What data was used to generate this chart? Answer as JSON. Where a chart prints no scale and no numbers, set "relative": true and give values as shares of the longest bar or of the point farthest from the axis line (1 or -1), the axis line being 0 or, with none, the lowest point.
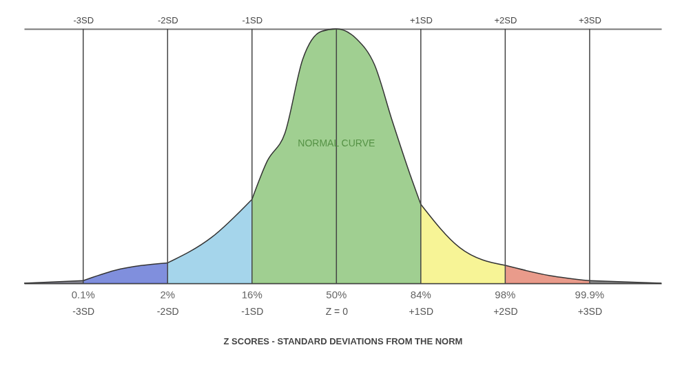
{
  "chart_data": {
    "type": "area",
    "relative": true,
    "xlabel": "Z SCORES - STANDARD DEVIATIONS FROM THE NORM",
    "xlim": [
      -3.7,
      3.85
    ],
    "xticks": [
      {
        "value": -3,
        "label": "-3SD"
      },
      {
        "value": -2,
        "label": "-2SD"
      },
      {
        "value": -1,
        "label": "-1SD"
      },
      {
        "value": 0,
        "label": "Z = 0"
      },
      {
        "value": 1,
        "label": "+1SD"
      },
      {
        "value": 2,
        "label": "+2SD"
      },
      {
        "value": 3,
        "label": "+3SD"
      }
    ],
    "x2lim": [
      -3.7,
      3.85
    ],
    "x2ticks": [
      {
        "value": -3,
        "label": "-3SD"
      },
      {
        "value": -2,
        "label": "-2SD"
      },
      {
        "value": -1,
        "label": "-1SD"
      },
      {
        "value": 1,
        "label": "+1SD"
      },
      {
        "value": 2,
        "label": "+2SD"
      },
      {
        "value": 3,
        "label": "+3SD"
      }
    ],
    "series": [
      {
        "color": "#5a5a6a",
        "x": [
          -3.7,
          -3
        ],
        "values": [
          0,
          0.01
        ]
      },
      {
        "color": "#4a5fcf",
        "x": [
          -3,
          -2.63,
          -2
        ],
        "values": [
          0.01,
          0.05,
          0.08
        ]
      },
      {
        "color": "#7fc3e3",
        "x": [
          -2,
          -1.48,
          -1
        ],
        "values": [
          0.08,
          0.18,
          0.33
        ]
      },
      {
        "color": "#78bb63",
        "x": [
          -1,
          -0.82,
          -0.61,
          -0.4,
          -0.18,
          0,
          0.24,
          0.45,
          0.66,
          0.87,
          1
        ],
        "values": [
          0.33,
          0.48,
          0.59,
          0.88,
          0.99,
          1,
          0.96,
          0.86,
          0.64,
          0.43,
          0.31
        ]
      },
      {
        "color": "#f3ef6a",
        "x": [
          1,
          1.46,
          2
        ],
        "values": [
          0.31,
          0.14,
          0.07
        ]
      },
      {
        "color": "#e0705a",
        "x": [
          2,
          2.53,
          3
        ],
        "values": [
          0.07,
          0.03,
          0.01
        ]
      },
      {
        "color": "#5a5a5a",
        "x": [
          3,
          3.85
        ],
        "values": [
          0.01,
          0
        ]
      }
    ],
    "ref_lines": [
      {
        "axis": "x",
        "value": -3
      },
      {
        "axis": "x",
        "value": -2
      },
      {
        "axis": "x",
        "value": -1
      },
      {
        "axis": "x",
        "value": 0
      },
      {
        "axis": "x",
        "value": 1
      },
      {
        "axis": "x",
        "value": 2
      },
      {
        "axis": "x",
        "value": 3
      }
    ],
    "annotations": [
      {
        "text": "NORMAL CURVE",
        "x": 0,
        "y": 0.55
      },
      {
        "text": "0.1%",
        "x": -3,
        "y": 0
      },
      {
        "text": "2%",
        "x": -2,
        "y": 0
      },
      {
        "text": "16%",
        "x": -1,
        "y": 0
      },
      {
        "text": "50%",
        "x": 0,
        "y": 0
      },
      {
        "text": "84%",
        "x": 1,
        "y": 0
      },
      {
        "text": "98%",
        "x": 2,
        "y": 0
      },
      {
        "text": "99.9%",
        "x": 3,
        "y": 0
      }
    ],
    "line_style": "solid"
  }
}
